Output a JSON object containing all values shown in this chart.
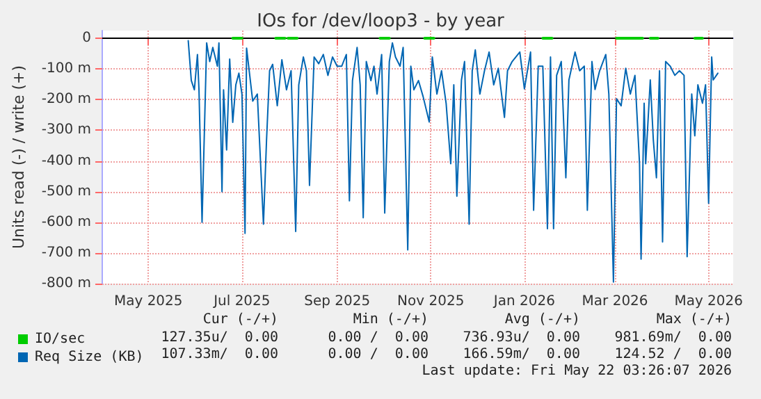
{
  "chart_data": {
    "type": "line",
    "title": "IOs for /dev/loop3 - by year",
    "ylabel": "Units read (-) / write (+)",
    "xlim": [
      "2025-04-16",
      "2026-06-01"
    ],
    "xticks": [
      {
        "value": "2025-05-16",
        "label": "May 2025"
      },
      {
        "value": "2025-07-16",
        "label": "Jul 2025"
      },
      {
        "value": "2025-09-16",
        "label": "Sep 2025"
      },
      {
        "value": "2025-11-16",
        "label": "Nov 2025"
      },
      {
        "value": "2026-01-16",
        "label": "Jan 2026"
      },
      {
        "value": "2026-03-16",
        "label": "Mar 2026"
      },
      {
        "value": "2026-05-16",
        "label": "May 2026"
      }
    ],
    "ylim": [
      -800,
      25
    ],
    "yticks": [
      {
        "value": -800,
        "label": "-800 m"
      },
      {
        "value": -700,
        "label": "-700 m"
      },
      {
        "value": -600,
        "label": "-600 m"
      },
      {
        "value": -500,
        "label": "-500 m"
      },
      {
        "value": -400,
        "label": "-400 m"
      },
      {
        "value": -300,
        "label": "-300 m"
      },
      {
        "value": -200,
        "label": "-200 m"
      },
      {
        "value": -100,
        "label": "-100 m"
      },
      0
    ],
    "grid": true,
    "legend": "bottom left",
    "marker": "none",
    "line_style": "solid",
    "ref_lines": [
      {
        "axis": "y",
        "value": 0,
        "label": null,
        "color": "#000000"
      }
    ],
    "annotations": [
      "Cur (-/+)",
      "Min (-/+)",
      "Avg (-/+)",
      "Max (-/+)",
      "127.35u/  0.00",
      "0.00 /  0.00",
      "736.93u/  0.00",
      "981.69m/  0.00",
      "107.33m/  0.00",
      "0.00 /  0.00",
      "166.59m/  0.00",
      "124.52 /  0.00",
      "Last update: Fri May 22 03:26:07 2026"
    ],
    "series": [
      {
        "name": "IO/sec",
        "color": "#00cc00",
        "x": [
          "2025-07-10",
          "2025-07-16",
          "2025-07-25",
          "2025-08-07",
          "2025-08-13",
          "2025-08-14",
          "2025-08-15",
          "2025-08-21",
          "2025-09-20",
          "2025-10-14",
          "2025-10-20",
          "2025-11-01",
          "2025-11-12",
          "2025-11-18",
          "2026-01-15",
          "2026-01-28",
          "2026-02-03",
          "2026-03-01",
          "2026-03-17",
          "2026-04-03",
          "2026-04-06",
          "2026-04-08",
          "2026-04-13",
          "2026-05-01",
          "2026-05-07",
          "2026-05-12"
        ],
        "values": [
          0,
          0,
          null,
          0,
          0,
          null,
          0,
          0,
          null,
          0,
          0,
          null,
          0,
          0,
          null,
          0,
          0,
          null,
          0,
          0,
          null,
          0,
          0,
          null,
          0,
          0
        ]
      },
      {
        "name": "Req Size (KB)",
        "color": "#0066b3",
        "x": [
          "2025-06-11",
          "2025-06-13",
          "2025-06-15",
          "2025-06-17",
          "2025-06-18",
          "2025-06-20",
          "2025-06-23",
          "2025-06-25",
          "2025-06-27",
          "2025-06-30",
          "2025-07-01",
          "2025-07-03",
          "2025-07-04",
          "2025-07-06",
          "2025-07-08",
          "2025-07-10",
          "2025-07-12",
          "2025-07-14",
          "2025-07-16",
          "2025-07-18",
          "2025-07-19",
          "2025-07-23",
          "2025-07-26",
          "2025-07-30",
          "2025-08-01",
          "2025-08-03",
          "2025-08-05",
          "2025-08-08",
          "2025-08-11",
          "2025-08-14",
          "2025-08-17",
          "2025-08-20",
          "2025-08-22",
          "2025-08-25",
          "2025-08-27",
          "2025-08-29",
          "2025-09-01",
          "2025-09-04",
          "2025-09-07",
          "2025-09-10",
          "2025-09-13",
          "2025-09-16",
          "2025-09-19",
          "2025-09-22",
          "2025-09-24",
          "2025-09-26",
          "2025-09-29",
          "2025-10-01",
          "2025-10-03",
          "2025-10-05",
          "2025-10-08",
          "2025-10-10",
          "2025-10-12",
          "2025-10-15",
          "2025-10-17",
          "2025-10-20",
          "2025-10-22",
          "2025-10-24",
          "2025-10-27",
          "2025-10-29",
          "2025-11-01",
          "2025-11-03",
          "2025-11-05",
          "2025-11-08",
          "2025-11-11",
          "2025-11-15",
          "2025-11-17",
          "2025-11-20",
          "2025-11-23",
          "2025-11-26",
          "2025-11-29",
          "2025-12-01",
          "2025-12-03",
          "2025-12-06",
          "2025-12-08",
          "2025-12-11",
          "2025-12-13",
          "2025-12-15",
          "2025-12-18",
          "2025-12-21",
          "2025-12-24",
          "2025-12-27",
          "2025-12-30",
          "2026-01-03",
          "2026-01-05",
          "2026-01-08",
          "2026-01-13",
          "2026-01-16",
          "2026-01-20",
          "2026-01-22",
          "2026-01-25",
          "2026-01-28",
          "2026-01-31",
          "2026-02-02",
          "2026-02-04",
          "2026-02-06",
          "2026-02-09",
          "2026-02-12",
          "2026-02-14",
          "2026-02-18",
          "2026-02-21",
          "2026-02-24",
          "2026-02-26",
          "2026-03-01",
          "2026-03-03",
          "2026-03-06",
          "2026-03-10",
          "2026-03-12",
          "2026-03-15",
          "2026-03-17",
          "2026-03-20",
          "2026-03-23",
          "2026-03-26",
          "2026-03-29",
          "2026-04-01",
          "2026-04-02",
          "2026-04-04",
          "2026-04-05",
          "2026-04-08",
          "2026-04-10",
          "2026-04-12",
          "2026-04-14",
          "2026-04-16",
          "2026-04-18",
          "2026-04-21",
          "2026-04-24",
          "2026-04-27",
          "2026-04-30",
          "2026-05-02",
          "2026-05-05",
          "2026-05-07",
          "2026-05-09",
          "2026-05-12",
          "2026-05-14",
          "2026-05-16",
          "2026-05-18",
          "2026-05-19",
          "2026-05-22"
        ],
        "values": [
          -8,
          -138,
          -168,
          -53,
          -168,
          -600,
          -15,
          -76,
          -30,
          -91,
          -15,
          -500,
          -168,
          -364,
          -68,
          -274,
          -152,
          -114,
          -182,
          -636,
          -32,
          -205,
          -182,
          -606,
          -333,
          -106,
          -85,
          -220,
          -70,
          -168,
          -106,
          -630,
          -152,
          -61,
          -106,
          -480,
          -61,
          -83,
          -53,
          -121,
          -61,
          -91,
          -91,
          -53,
          -530,
          -138,
          -30,
          -152,
          -585,
          -76,
          -138,
          -91,
          -182,
          -53,
          -570,
          -76,
          -15,
          -61,
          -91,
          -30,
          -690,
          -91,
          -168,
          -138,
          -190,
          -273,
          -61,
          -182,
          -106,
          -212,
          -409,
          -152,
          -515,
          -136,
          -76,
          -606,
          -106,
          -38,
          -182,
          -106,
          -45,
          -152,
          -98,
          -258,
          -106,
          -76,
          -45,
          -165,
          -45,
          -561,
          -91,
          -91,
          -621,
          -61,
          -621,
          -121,
          -76,
          -455,
          -136,
          -45,
          -106,
          -91,
          -561,
          -76,
          -167,
          -106,
          -53,
          -182,
          -795,
          -197,
          -220,
          -98,
          -182,
          -121,
          -409,
          -720,
          -212,
          -409,
          -136,
          -333,
          -455,
          -106,
          -664,
          -76,
          -91,
          -121,
          -106,
          -121,
          -712,
          -182,
          -318,
          -152,
          -212,
          -152,
          -538,
          -61,
          -136,
          -114
        ]
      }
    ]
  }
}
